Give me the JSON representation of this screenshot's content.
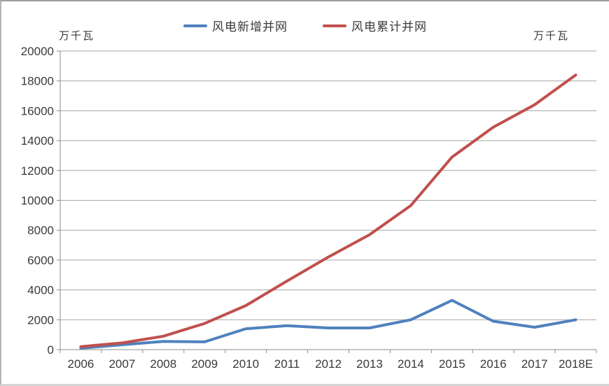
{
  "legend": {
    "items": [
      {
        "label": "风电新增并网",
        "color": "#4F81BD"
      },
      {
        "label": "风电累计并网",
        "color": "#C0504D"
      }
    ]
  },
  "axis_units": {
    "left": "万千瓦",
    "right": "万千瓦"
  },
  "chart_data": {
    "type": "line",
    "categories": [
      "2006",
      "2007",
      "2008",
      "2009",
      "2010",
      "2011",
      "2012",
      "2013",
      "2014",
      "2015",
      "2016",
      "2017",
      "2018E"
    ],
    "series": [
      {
        "name": "风电新增并网",
        "color": "#4F81BD",
        "values": [
          100,
          330,
          550,
          520,
          1400,
          1600,
          1450,
          1450,
          2000,
          3300,
          1900,
          1500,
          2000
        ]
      },
      {
        "name": "风电累计并网",
        "color": "#C0504D",
        "values": [
          200,
          450,
          900,
          1750,
          2950,
          4600,
          6200,
          7700,
          9650,
          12900,
          14900,
          16400,
          18400
        ]
      }
    ],
    "title": "",
    "xlabel": "",
    "ylabel_left": "万千瓦",
    "ylabel_right": "万千瓦",
    "ylim": [
      0,
      20000
    ],
    "ytick_step": 2000,
    "grid": true,
    "legend_position": "top",
    "colors": {
      "gridline": "#a6a6a6",
      "axis": "#8c8c8c",
      "tick_text": "#3a3a3a"
    }
  }
}
